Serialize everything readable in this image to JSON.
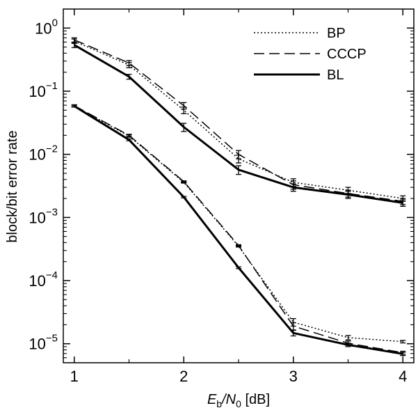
{
  "chart_data": {
    "type": "line",
    "xlabel": {
      "main": "E",
      "sub1": "b",
      "mid": "/N",
      "sub2": "0",
      "unit": " [dB]"
    },
    "ylabel": "block/bit error rate",
    "xlim": [
      0.9,
      4.1
    ],
    "ylim": [
      5e-06,
      2
    ],
    "yscale": "log",
    "grid": false,
    "legend_position": "top-right",
    "x_ticks": [
      {
        "value": 1,
        "label": "1"
      },
      {
        "value": 2,
        "label": "2"
      },
      {
        "value": 3,
        "label": "3"
      },
      {
        "value": 4,
        "label": "4"
      }
    ],
    "y_ticks": [
      {
        "value": 1,
        "base": "10",
        "exp": "0"
      },
      {
        "value": 0.1,
        "base": "10",
        "exp": "−1"
      },
      {
        "value": 0.01,
        "base": "10",
        "exp": "−2"
      },
      {
        "value": 0.001,
        "base": "10",
        "exp": "−3"
      },
      {
        "value": 0.0001,
        "base": "10",
        "exp": "−4"
      },
      {
        "value": 1e-05,
        "base": "10",
        "exp": "−5"
      }
    ],
    "x": [
      1,
      1.5,
      2,
      2.5,
      3,
      3.5,
      4
    ],
    "series": [
      {
        "name": "BP",
        "group": "block",
        "style": "dotted",
        "values": [
          0.62,
          0.26,
          0.05,
          0.0085,
          0.0036,
          0.0027,
          0.002
        ],
        "err": [
          0.05,
          0.025,
          0.006,
          0.0012,
          0.0005,
          0.0003,
          0.0002
        ]
      },
      {
        "name": "CCCP",
        "group": "block",
        "style": "dashed",
        "values": [
          0.65,
          0.28,
          0.059,
          0.01,
          0.0033,
          0.0024,
          0.0018
        ],
        "err": [
          0.05,
          0.025,
          0.007,
          0.0015,
          0.0005,
          0.0003,
          0.0002
        ]
      },
      {
        "name": "BL",
        "group": "block",
        "style": "solid",
        "values": [
          0.54,
          0.17,
          0.027,
          0.0057,
          0.003,
          0.0023,
          0.0017
        ],
        "err": [
          0.05,
          0.015,
          0.004,
          0.0009,
          0.0004,
          0.0003,
          0.0002
        ]
      },
      {
        "name": "BP",
        "group": "bit",
        "style": "dotted",
        "values": [
          0.058,
          0.0195,
          0.0036,
          0.00035,
          2.2e-05,
          1.25e-05,
          1.08e-05
        ],
        "err": [
          0.002,
          0.0008,
          0.0001,
          1e-05,
          3e-06,
          1e-06,
          5e-07
        ]
      },
      {
        "name": "CCCP",
        "group": "bit",
        "style": "dashed",
        "values": [
          0.059,
          0.02,
          0.0037,
          0.00036,
          1.9e-05,
          1.02e-05,
          7.2e-06
        ],
        "err": [
          0.002,
          0.0008,
          0.0001,
          1e-05,
          2.5e-06,
          8e-07,
          4e-07
        ]
      },
      {
        "name": "BL",
        "group": "bit",
        "style": "solid",
        "values": [
          0.058,
          0.017,
          0.0021,
          0.00016,
          1.48e-05,
          9.6e-06,
          6.9e-06
        ],
        "err": [
          0.002,
          0.0006,
          6e-05,
          5e-06,
          1.5e-06,
          6e-07,
          4e-07
        ]
      }
    ],
    "legend": [
      {
        "label": "BP",
        "style": "dotted"
      },
      {
        "label": "CCCP",
        "style": "dashed"
      },
      {
        "label": "BL",
        "style": "solid"
      }
    ],
    "styles": {
      "dotted": {
        "width": 1.5,
        "dash": "2 3"
      },
      "dashed": {
        "width": 1.5,
        "dash": "15 7"
      },
      "solid": {
        "width": 3,
        "dash": ""
      }
    },
    "colors": {
      "line": "#000000",
      "frame": "#000000",
      "background": "#ffffff"
    }
  }
}
